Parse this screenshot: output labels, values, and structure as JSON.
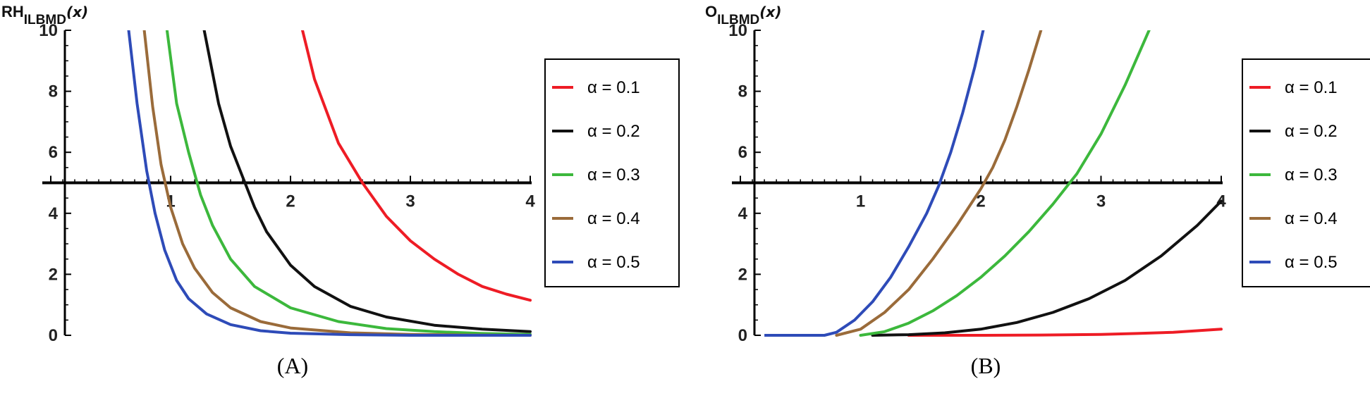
{
  "chart_data": [
    {
      "type": "line",
      "panel_label": "(A)",
      "ylabel": {
        "main": "RH",
        "sub": "ILBMD",
        "arg": "(x)"
      },
      "xlim": [
        0,
        4
      ],
      "ylim": [
        0,
        10
      ],
      "x_axis_crosses_y_at": 5,
      "x_ticks": [
        "1",
        "2",
        "3",
        "4"
      ],
      "y_ticks": [
        "0",
        "2",
        "4",
        "6",
        "8",
        "10"
      ],
      "legend_position": "right",
      "series": [
        {
          "name": "α = 0.1",
          "label": "α = 0.1",
          "color": "#ee1c25",
          "x": [
            2.1,
            2.2,
            2.4,
            2.6,
            2.8,
            3.0,
            3.2,
            3.4,
            3.6,
            3.8,
            4.0
          ],
          "y": [
            10,
            8.4,
            6.3,
            5.0,
            3.9,
            3.1,
            2.5,
            2.0,
            1.6,
            1.35,
            1.15
          ]
        },
        {
          "name": "α = 0.2",
          "label": "α = 0.2",
          "color": "#111111",
          "x": [
            1.28,
            1.4,
            1.5,
            1.6,
            1.7,
            1.8,
            2.0,
            2.2,
            2.5,
            2.8,
            3.2,
            3.6,
            4.0
          ],
          "y": [
            10,
            7.6,
            6.2,
            5.2,
            4.2,
            3.4,
            2.3,
            1.6,
            0.95,
            0.6,
            0.33,
            0.2,
            0.12
          ]
        },
        {
          "name": "α = 0.3",
          "label": "α = 0.3",
          "color": "#3cb83c",
          "x": [
            0.97,
            1.05,
            1.15,
            1.25,
            1.35,
            1.5,
            1.7,
            2.0,
            2.4,
            2.8,
            3.2,
            3.6,
            4.0
          ],
          "y": [
            10,
            7.6,
            6.0,
            4.6,
            3.6,
            2.5,
            1.6,
            0.9,
            0.45,
            0.22,
            0.12,
            0.06,
            0.03
          ]
        },
        {
          "name": "α = 0.4",
          "label": "α = 0.4",
          "color": "#9a6b3a",
          "x": [
            0.78,
            0.85,
            0.92,
            1.0,
            1.1,
            1.2,
            1.35,
            1.5,
            1.75,
            2.0,
            2.5,
            3.0,
            3.5,
            4.0
          ],
          "y": [
            10,
            7.5,
            5.6,
            4.2,
            3.0,
            2.2,
            1.4,
            0.9,
            0.45,
            0.24,
            0.08,
            0.03,
            0.01,
            0.0
          ]
        },
        {
          "name": "α = 0.5",
          "label": "α = 0.5",
          "color": "#2e4bb8",
          "x": [
            0.65,
            0.72,
            0.8,
            0.87,
            0.95,
            1.05,
            1.15,
            1.3,
            1.5,
            1.75,
            2.0,
            2.5,
            3.0,
            4.0
          ],
          "y": [
            10,
            7.6,
            5.4,
            4.0,
            2.8,
            1.8,
            1.2,
            0.7,
            0.35,
            0.15,
            0.07,
            0.02,
            0.0,
            0.0
          ]
        }
      ]
    },
    {
      "type": "line",
      "panel_label": "(B)",
      "ylabel": {
        "main": "O",
        "sub": "ILBMD",
        "arg": "(x)"
      },
      "xlim": [
        0,
        4
      ],
      "ylim": [
        0,
        10
      ],
      "x_axis_crosses_y_at": 5,
      "x_ticks": [
        "1",
        "2",
        "3",
        "4"
      ],
      "y_ticks": [
        "0",
        "2",
        "4",
        "6",
        "8",
        "10"
      ],
      "legend_position": "right",
      "series": [
        {
          "name": "α = 0.1",
          "label": "α = 0.1",
          "color": "#ee1c25",
          "x": [
            1.4,
            2.0,
            2.5,
            3.0,
            3.3,
            3.6,
            3.8,
            4.0
          ],
          "y": [
            0,
            0.0,
            0.01,
            0.03,
            0.06,
            0.1,
            0.15,
            0.2
          ]
        },
        {
          "name": "α = 0.2",
          "label": "α = 0.2",
          "color": "#111111",
          "x": [
            1.1,
            1.4,
            1.7,
            2.0,
            2.3,
            2.6,
            2.9,
            3.2,
            3.5,
            3.8,
            4.0
          ],
          "y": [
            0,
            0.02,
            0.08,
            0.2,
            0.42,
            0.75,
            1.2,
            1.8,
            2.6,
            3.6,
            4.4
          ]
        },
        {
          "name": "α = 0.3",
          "label": "α = 0.3",
          "color": "#3cb83c",
          "x": [
            1.0,
            1.2,
            1.4,
            1.6,
            1.8,
            2.0,
            2.2,
            2.4,
            2.6,
            2.8,
            3.0,
            3.2,
            3.4
          ],
          "y": [
            0,
            0.12,
            0.4,
            0.8,
            1.3,
            1.9,
            2.6,
            3.4,
            4.3,
            5.3,
            6.6,
            8.2,
            10
          ]
        },
        {
          "name": "α = 0.4",
          "label": "α = 0.4",
          "color": "#9a6b3a",
          "x": [
            0.8,
            1.0,
            1.2,
            1.4,
            1.6,
            1.8,
            2.0,
            2.1,
            2.2,
            2.3,
            2.4,
            2.5
          ],
          "y": [
            0,
            0.2,
            0.75,
            1.5,
            2.5,
            3.6,
            4.8,
            5.5,
            6.4,
            7.5,
            8.7,
            10
          ]
        },
        {
          "name": "α = 0.5",
          "label": "α = 0.5",
          "color": "#2e4bb8",
          "x": [
            0.55,
            0.62,
            0.7,
            0.8,
            0.95,
            1.1,
            1.25,
            1.4,
            1.55,
            1.65,
            1.75,
            1.85,
            1.95,
            2.02
          ],
          "y": [
            0,
            0,
            0,
            0.1,
            0.5,
            1.1,
            1.9,
            2.9,
            4.0,
            4.9,
            6.0,
            7.3,
            8.8,
            10
          ]
        }
      ]
    }
  ]
}
